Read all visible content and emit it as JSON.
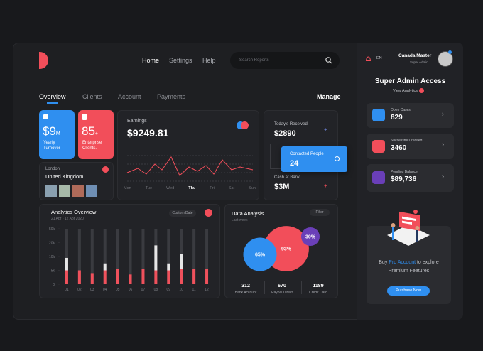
{
  "nav": {
    "items": [
      "Home",
      "Settings",
      "Help"
    ],
    "search": "Search Reports"
  },
  "tabs": {
    "items": [
      "Overview",
      "Clients",
      "Account",
      "Payments"
    ],
    "action": "Manage"
  },
  "cards": {
    "turnover": {
      "value": "$9",
      "unit": "M",
      "label": "Yearly Turnover"
    },
    "clients": {
      "value": "85",
      "unit": "+",
      "label": "Enterprise Clients."
    }
  },
  "location": {
    "city": "London",
    "country": "United Kingdom"
  },
  "earnings": {
    "title": "Earnings",
    "value": "$9249.81",
    "days": [
      "Mon",
      "Tue",
      "Wed",
      "Thu",
      "Fri",
      "Sat",
      "Sun"
    ]
  },
  "summary": {
    "received": {
      "label": "Today's Received",
      "value": "$2890"
    },
    "contacted": {
      "label": "Contacted People",
      "value": "24"
    },
    "cash": {
      "label": "Cash at Bank",
      "value": "$3M"
    }
  },
  "analytics": {
    "type": "bar",
    "title": "Analytics Overview",
    "range": "21 Apr - 12 Apr 2020",
    "filter": "Custom Date",
    "ylim": [
      0,
      4
    ],
    "yticks": [
      {
        "value": 0,
        "label": "0"
      },
      {
        "value": 1,
        "label": "5k"
      },
      {
        "value": 2,
        "label": "10k"
      },
      {
        "value": 3,
        "label": "20k"
      },
      {
        "value": 4,
        "label": "50k"
      }
    ],
    "categories": [
      "01",
      "02",
      "03",
      "04",
      "05",
      "06",
      "07",
      "08",
      "09",
      "10",
      "11",
      "12"
    ],
    "series": [
      {
        "color": "#f0515c",
        "values": [
          1,
          1,
          0.8,
          1,
          1.1,
          0.7,
          1.1,
          1,
          1,
          1.1,
          1.1,
          1.1
        ]
      },
      {
        "color": "#e6e6e6",
        "values": [
          0.9,
          0,
          0,
          0.5,
          0,
          0,
          0,
          1.8,
          0.5,
          1.1,
          0,
          0
        ]
      }
    ]
  },
  "data_analysis": {
    "type": "bubble",
    "title": "Data Analysis",
    "subtitle": "Last week",
    "filter": "Filter",
    "values": [
      93,
      65,
      30
    ],
    "value_labels": [
      "93%",
      "65%",
      "30%"
    ],
    "colors": [
      "#f24e5a",
      "#2f8ff0",
      "#6a3fb8"
    ],
    "stats": [
      {
        "value": "312",
        "label": "Bank Account"
      },
      {
        "value": "670",
        "label": "Paypal Direct"
      },
      {
        "value": "1189",
        "label": "Credit Card"
      }
    ]
  },
  "profile": {
    "language": "EN",
    "name": "Canada Master",
    "role": "Super Admin"
  },
  "access": {
    "title": "Super Admin Access",
    "link": "View Analytics",
    "items": [
      {
        "label": "Open Cases",
        "value": "829"
      },
      {
        "label": "Successful Credited",
        "value": "3460"
      },
      {
        "label": "Pending Balance",
        "value": "$89,736"
      }
    ]
  },
  "promo": {
    "text_before": "Buy",
    "highlight": "Pro Account",
    "text_after": "to explore",
    "text_line2": "Premium Features",
    "button": "Purchase Now"
  }
}
